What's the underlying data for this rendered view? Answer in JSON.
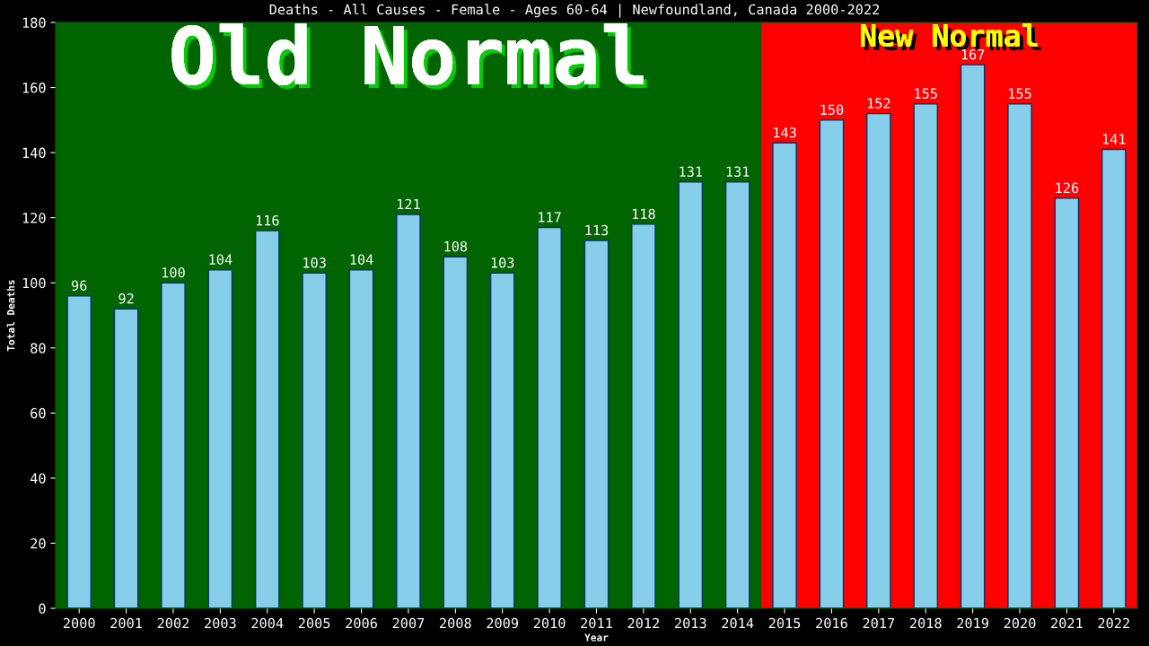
{
  "chart_data": {
    "type": "bar",
    "title": "Deaths - All Causes - Female - Ages 60-64 | Newfoundland, Canada 2000-2022",
    "xlabel": "Year",
    "ylabel": "Total Deaths",
    "categories": [
      "2000",
      "2001",
      "2002",
      "2003",
      "2004",
      "2005",
      "2006",
      "2007",
      "2008",
      "2009",
      "2010",
      "2011",
      "2012",
      "2013",
      "2014",
      "2015",
      "2016",
      "2017",
      "2018",
      "2019",
      "2020",
      "2021",
      "2022"
    ],
    "values": [
      96,
      92,
      100,
      104,
      116,
      103,
      104,
      121,
      108,
      103,
      117,
      113,
      118,
      131,
      131,
      143,
      150,
      152,
      155,
      167,
      155,
      126,
      141
    ],
    "color": "#87ceeb",
    "ylim": [
      0,
      180
    ],
    "yticks": [
      0,
      20,
      40,
      60,
      80,
      100,
      120,
      140,
      160,
      180
    ],
    "grid": false,
    "data_labels": true,
    "bands": [
      {
        "axis": "x",
        "from": "2000",
        "to": "2014",
        "label": "Old Normal",
        "color": "#006400"
      },
      {
        "axis": "x",
        "from": "2015",
        "to": "2022",
        "label": "New Normal",
        "color": "#ff0000"
      }
    ]
  }
}
